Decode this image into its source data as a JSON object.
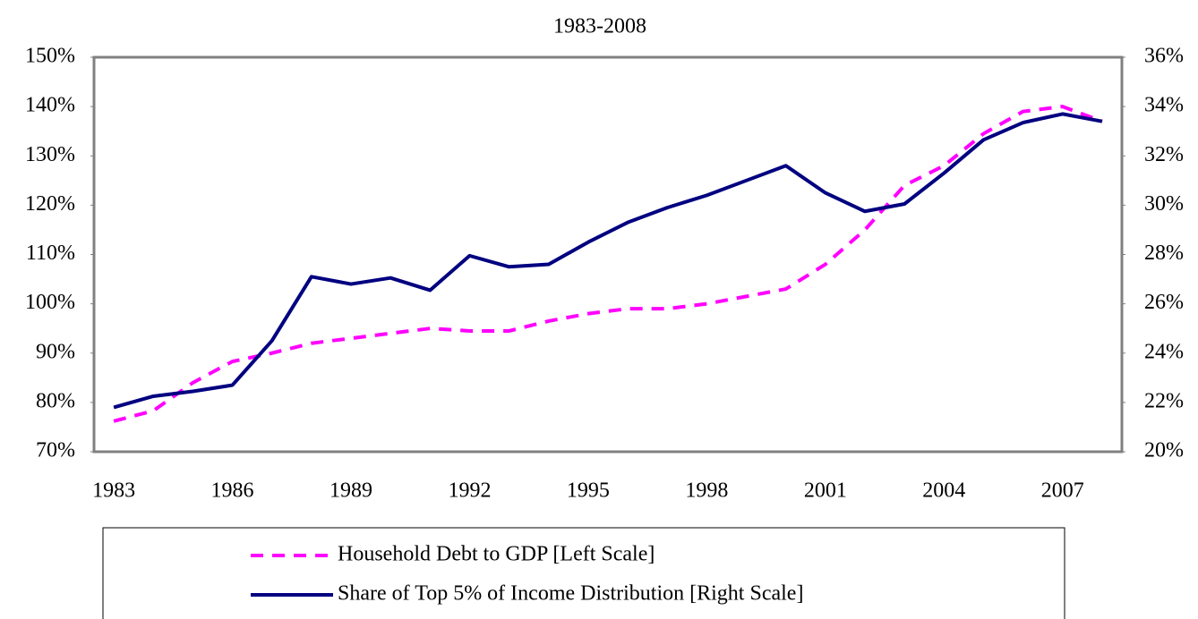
{
  "chart_data": {
    "type": "line",
    "title": "1983-2008",
    "categories": [
      "1983",
      null,
      null,
      "1986",
      null,
      null,
      "1989",
      null,
      null,
      "1992",
      null,
      null,
      "1995",
      null,
      null,
      "1998",
      null,
      null,
      "2001",
      null,
      null,
      "2004",
      null,
      null,
      "2007",
      null
    ],
    "series": [
      {
        "name": "Household Debt to GDP [Left Scale]",
        "color": "#ff00ff",
        "dash": "dashed",
        "axis": "y",
        "values": [
          76.2,
          78.3,
          84,
          88.3,
          90,
          92,
          93,
          94,
          95,
          94.5,
          94.5,
          96.5,
          98,
          99,
          99,
          100,
          101.5,
          103,
          108,
          115,
          124,
          128,
          134.5,
          139,
          140,
          137
        ]
      },
      {
        "name": "Share of Top 5% of Income Distribution [Right Scale]",
        "color": "#000080",
        "dash": "solid",
        "axis": "y2",
        "values": [
          21.8,
          22.25,
          22.45,
          22.7,
          24.5,
          27.1,
          26.8,
          27.05,
          26.55,
          27.95,
          27.5,
          27.6,
          28.5,
          29.3,
          29.9,
          30.4,
          31.0,
          31.6,
          30.5,
          29.75,
          30.05,
          31.3,
          32.65,
          33.35,
          33.7,
          33.4
        ]
      }
    ],
    "ylim": [
      70,
      150
    ],
    "yticks": [
      {
        "value": 70,
        "label": "70%"
      },
      {
        "value": 80,
        "label": "80%"
      },
      {
        "value": 90,
        "label": "90%"
      },
      {
        "value": 100,
        "label": "100%"
      },
      {
        "value": 110,
        "label": "110%"
      },
      {
        "value": 120,
        "label": "120%"
      },
      {
        "value": 130,
        "label": "130%"
      },
      {
        "value": 140,
        "label": "140%"
      },
      {
        "value": 150,
        "label": "150%"
      }
    ],
    "y2lim": [
      20,
      36
    ],
    "y2ticks": [
      {
        "value": 20,
        "label": "20%"
      },
      {
        "value": 22,
        "label": "22%"
      },
      {
        "value": 24,
        "label": "24%"
      },
      {
        "value": 26,
        "label": "26%"
      },
      {
        "value": 28,
        "label": "28%"
      },
      {
        "value": 30,
        "label": "30%"
      },
      {
        "value": 32,
        "label": "32%"
      },
      {
        "value": 34,
        "label": "34%"
      },
      {
        "value": 36,
        "label": "36%"
      }
    ],
    "grid": false,
    "legend": "bottom"
  }
}
